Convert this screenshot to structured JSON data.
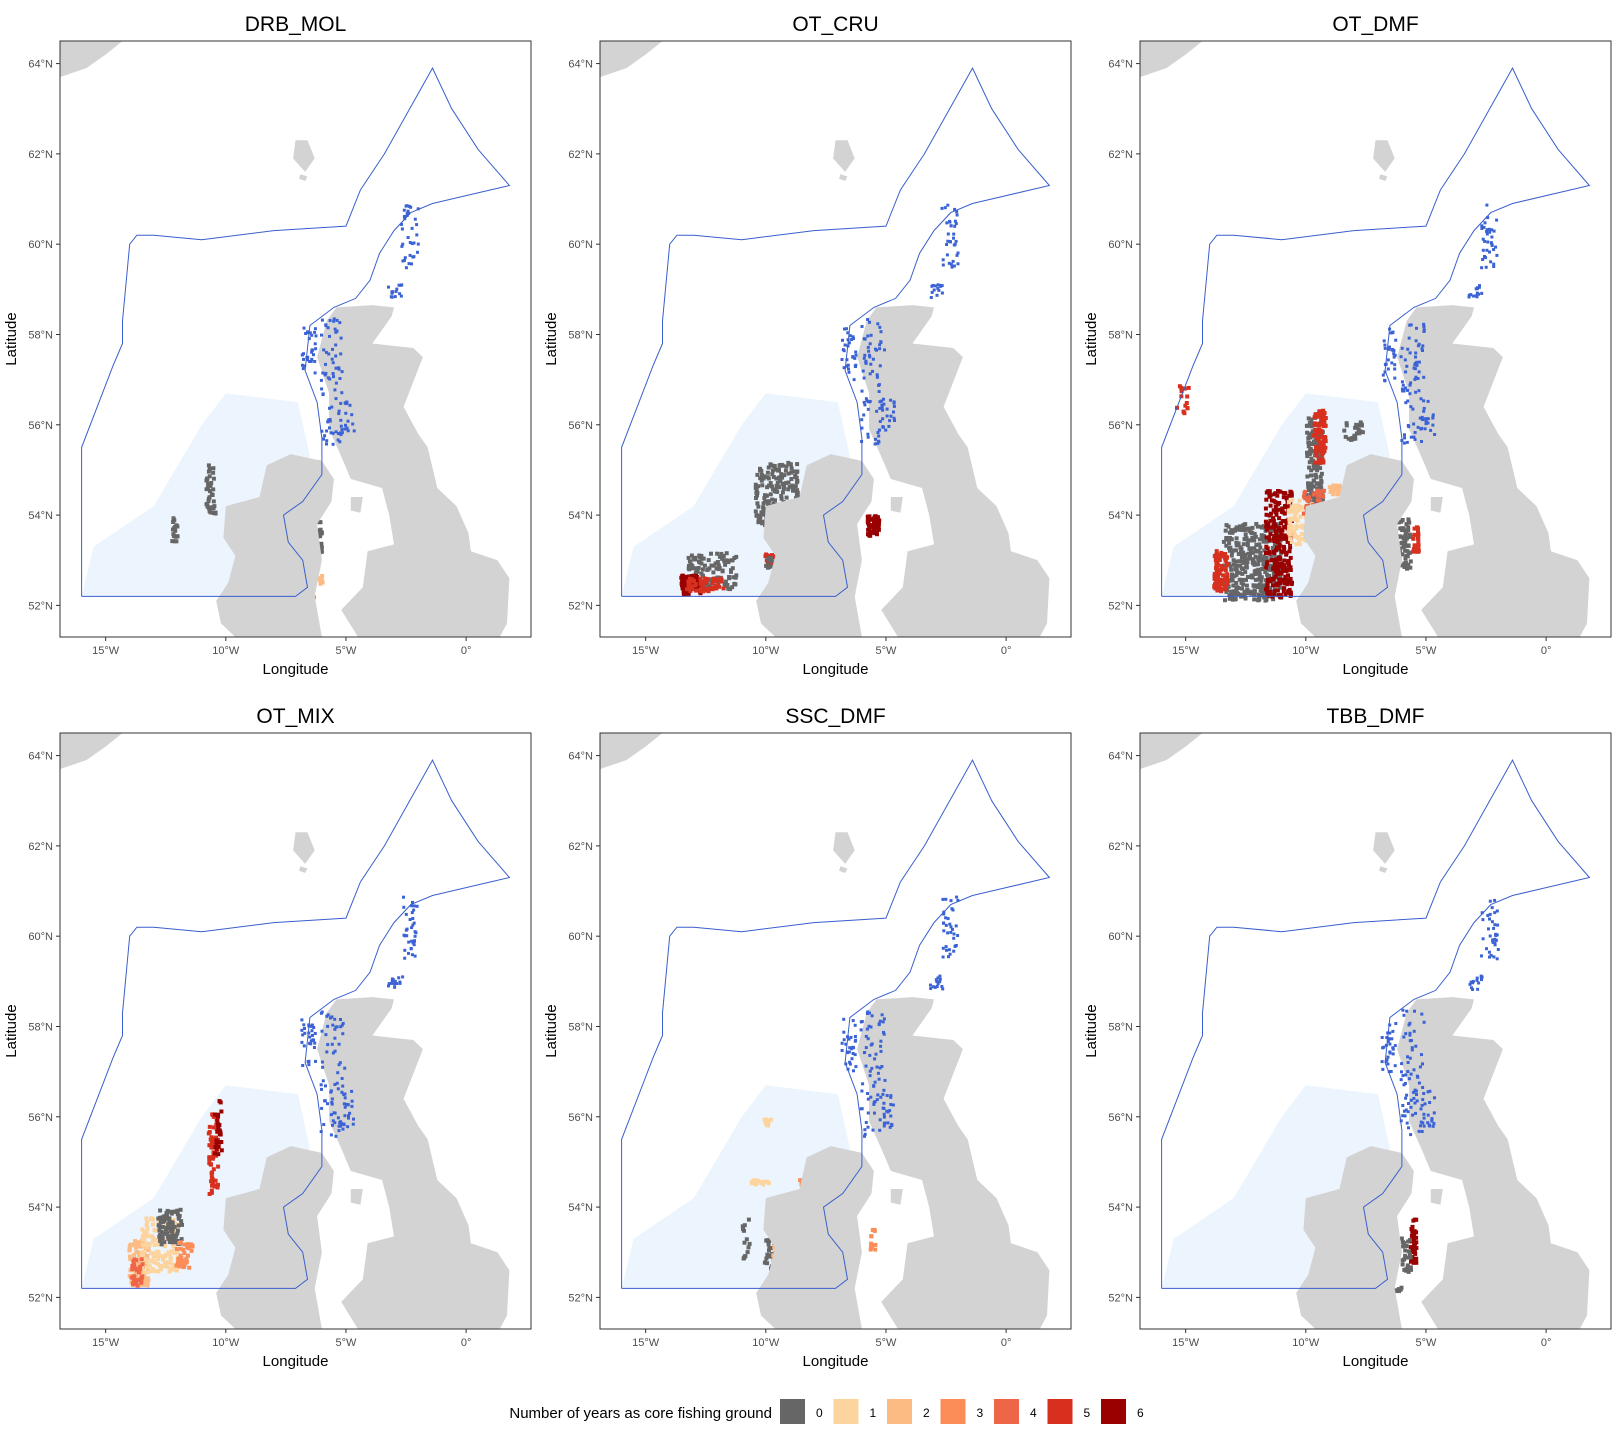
{
  "x_label": "Longitude",
  "y_label": "Latitude",
  "lat_ticks": [
    "64°N",
    "62°N",
    "60°N",
    "58°N",
    "56°N",
    "54°N",
    "52°N"
  ],
  "lon_ticks": [
    "15°W",
    "10°W",
    "5°W",
    "0°"
  ],
  "colors": {
    "boundary": "#3a5fcd",
    "land": "#d3d3d3",
    "sea_habitat": "#ecf5fd",
    "coast_detail": "#3b63d6",
    "frame": "#333333"
  },
  "panels": [
    {
      "title": "DRB_MOL",
      "pattern": "drb"
    },
    {
      "title": "OT_CRU",
      "pattern": "cru"
    },
    {
      "title": "OT_DMF",
      "pattern": "dmf"
    },
    {
      "title": "OT_MIX",
      "pattern": "mix"
    },
    {
      "title": "SSC_DMF",
      "pattern": "ssc"
    },
    {
      "title": "TBB_DMF",
      "pattern": "tbb"
    }
  ],
  "legend": {
    "title": "Number of years as core fishing ground",
    "items": [
      {
        "label": "0",
        "color": "#666666"
      },
      {
        "label": "1",
        "color": "#fdd49e"
      },
      {
        "label": "2",
        "color": "#fdbb84"
      },
      {
        "label": "3",
        "color": "#fc8d59"
      },
      {
        "label": "4",
        "color": "#ef6548"
      },
      {
        "label": "5",
        "color": "#d7301f"
      },
      {
        "label": "6",
        "color": "#990000"
      }
    ]
  }
}
